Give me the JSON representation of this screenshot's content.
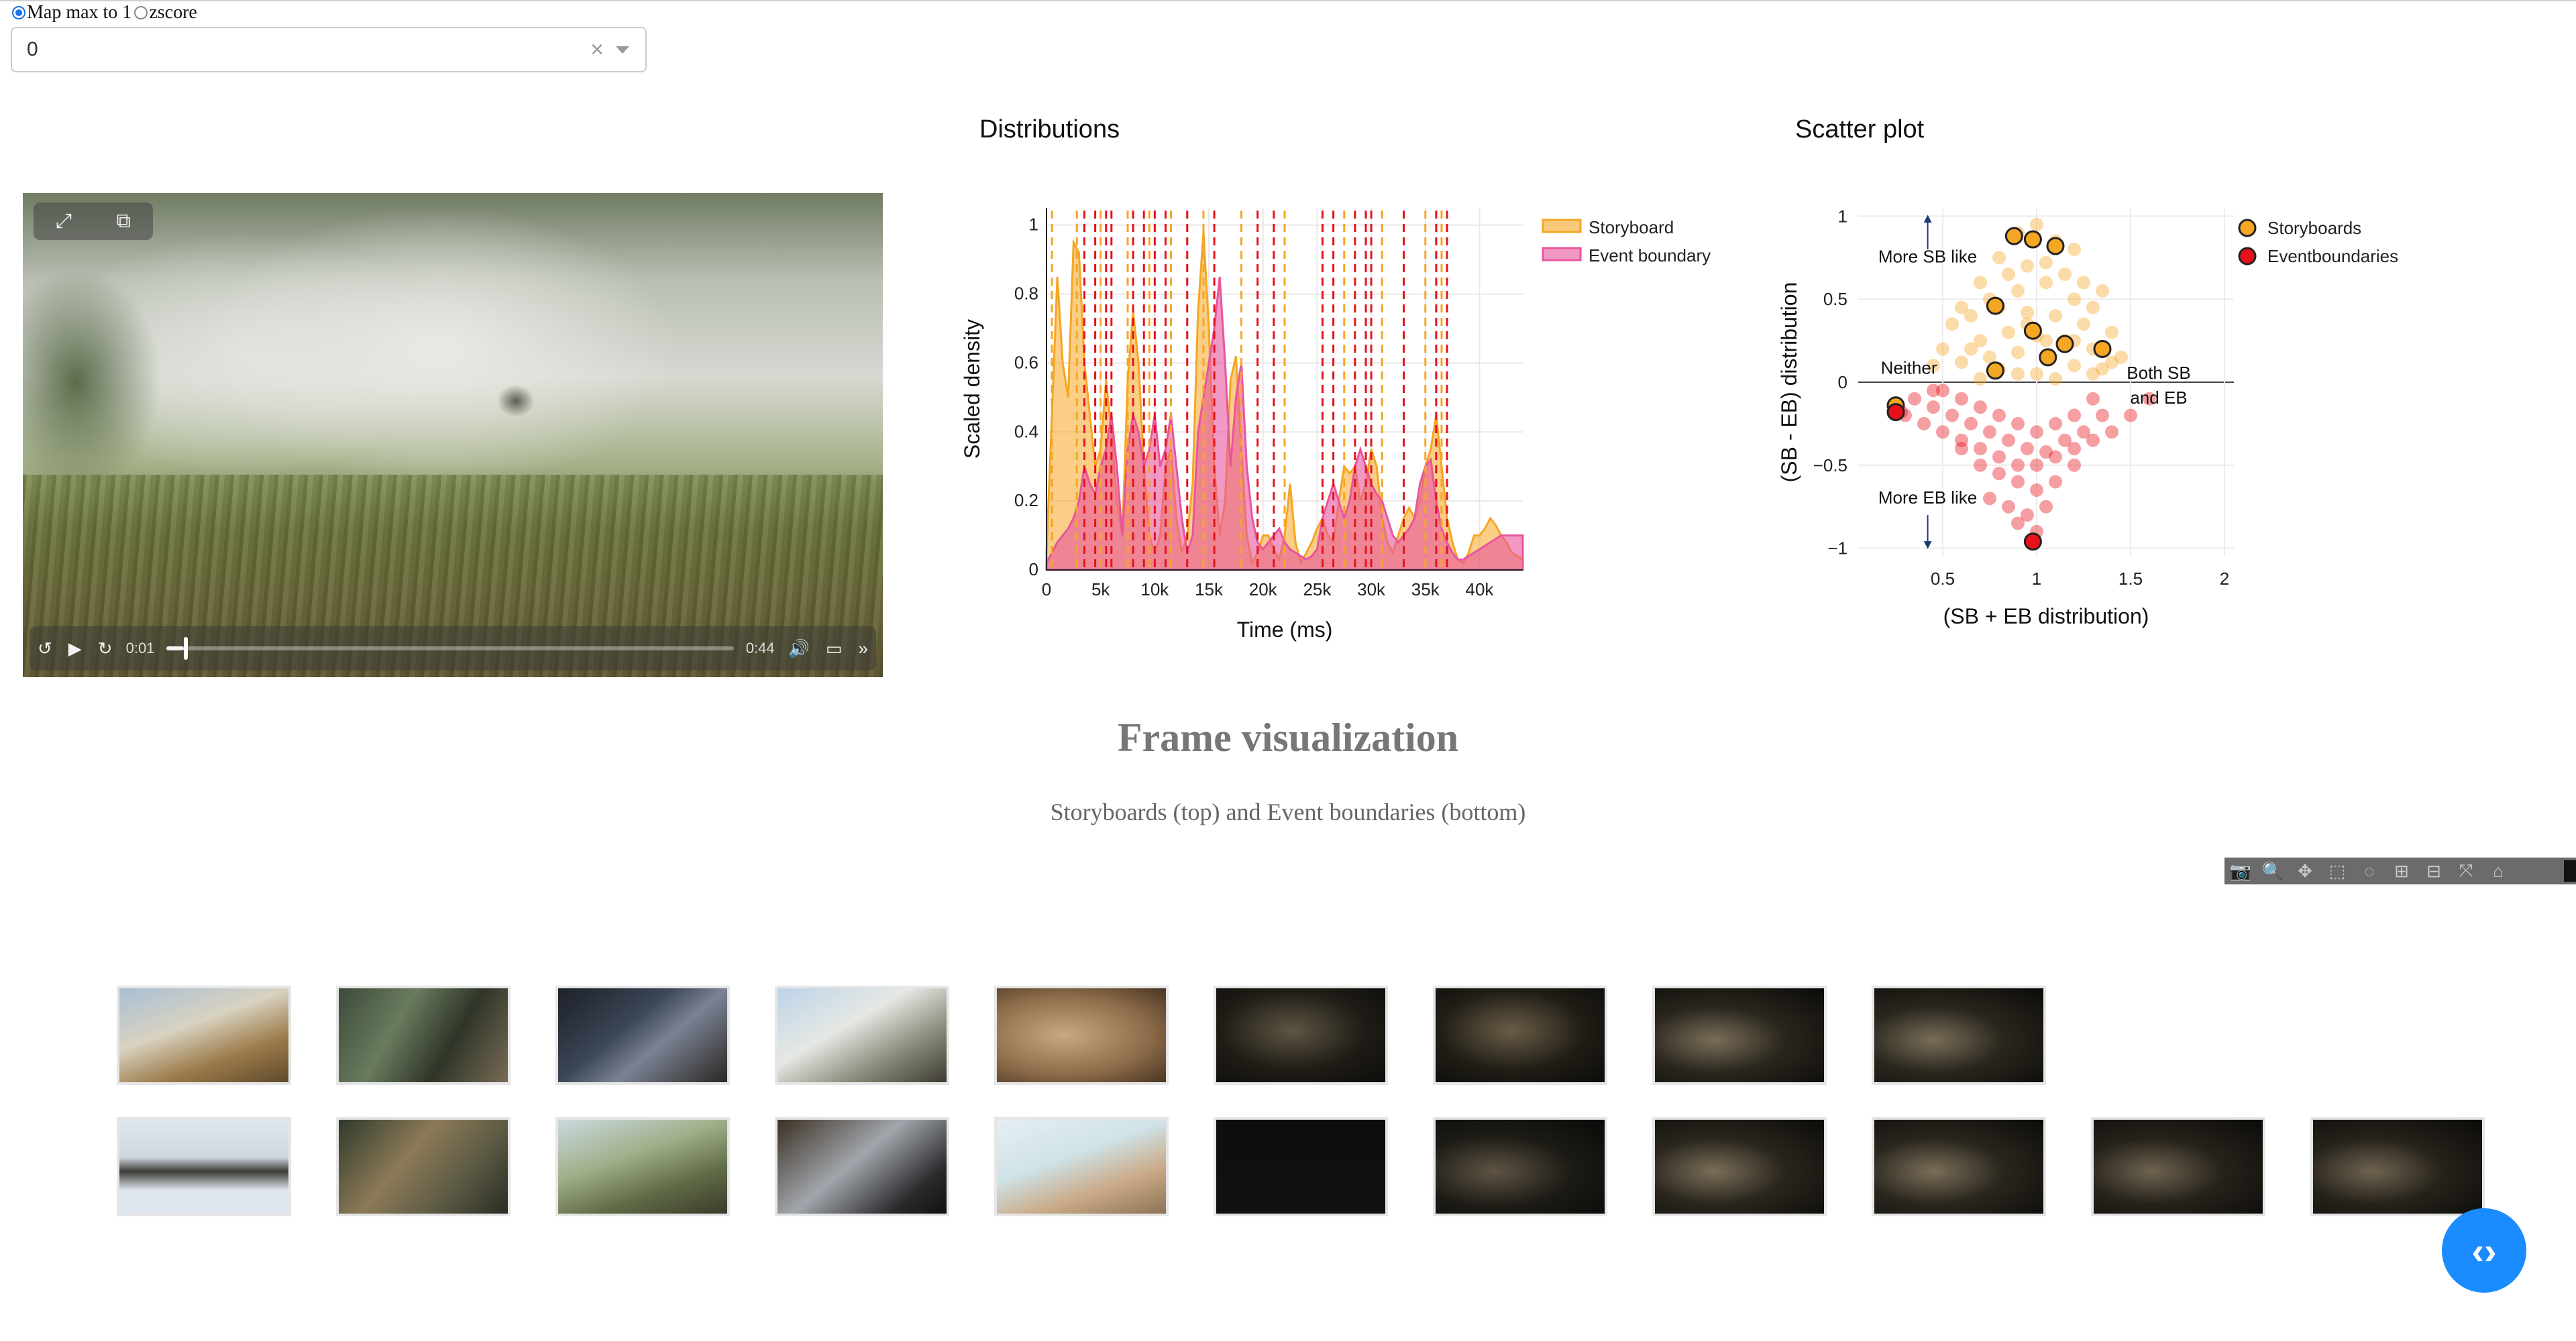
{
  "radio_options": [
    {
      "label": "Map max to 1",
      "selected": true
    },
    {
      "label": "zscore",
      "selected": false
    }
  ],
  "select": {
    "value": "0",
    "clear_icon": "close-icon",
    "caret_icon": "chevron-down-icon"
  },
  "video": {
    "current_time": "0:01",
    "duration": "0:44",
    "progress": 0.03,
    "icons": [
      "fullscreen-icon",
      "picture-in-picture-icon",
      "rewind-15-icon",
      "play-icon",
      "forward-15-icon",
      "volume-icon",
      "airplay-icon",
      "more-icon"
    ]
  },
  "distributions": {
    "title": "Distributions",
    "chart_data": {
      "type": "area",
      "xlabel": "Time (ms)",
      "ylabel": "Scaled density",
      "xlim": [
        0,
        44000
      ],
      "ylim": [
        0,
        1.05
      ],
      "xticks": [
        "0",
        "5k",
        "10k",
        "15k",
        "20k",
        "25k",
        "30k",
        "35k",
        "40k"
      ],
      "xtick_values": [
        0,
        5000,
        10000,
        15000,
        20000,
        25000,
        30000,
        35000,
        40000
      ],
      "yticks": [
        "0",
        "0.2",
        "0.4",
        "0.6",
        "0.8",
        "1"
      ],
      "ytick_values": [
        0,
        0.2,
        0.4,
        0.6,
        0.8,
        1
      ],
      "legend_position": "top-right",
      "series": [
        {
          "name": "Storyboard",
          "color": "#f5a623",
          "x": [
            0,
            500,
            1000,
            1500,
            2000,
            2500,
            3000,
            3500,
            4000,
            4500,
            5000,
            5500,
            6000,
            6500,
            7000,
            7500,
            8000,
            8500,
            9000,
            9500,
            10000,
            10500,
            11000,
            11500,
            12000,
            12500,
            13000,
            13500,
            14000,
            14500,
            15000,
            15500,
            16000,
            16500,
            17000,
            17500,
            18000,
            18500,
            19000,
            19500,
            20000,
            20500,
            21000,
            21500,
            22000,
            22500,
            23000,
            23500,
            24000,
            24500,
            25000,
            25500,
            26000,
            26500,
            27000,
            27500,
            28000,
            28500,
            29000,
            29500,
            30000,
            30500,
            31000,
            31500,
            32000,
            32500,
            33000,
            33500,
            34000,
            34500,
            35000,
            35500,
            36000,
            36500,
            37000,
            37500,
            38000,
            38500,
            39000,
            39500,
            40000,
            40500,
            41000,
            41500,
            42000,
            42500,
            43000,
            43500,
            44000
          ],
          "y": [
            0.05,
            0.45,
            0.85,
            0.6,
            0.5,
            0.95,
            0.92,
            0.6,
            0.45,
            0.3,
            0.35,
            0.55,
            0.4,
            0.2,
            0.1,
            0.55,
            0.75,
            0.6,
            0.3,
            0.1,
            0.05,
            0.1,
            0.3,
            0.35,
            0.15,
            0.05,
            0.1,
            0.25,
            0.75,
            0.98,
            0.7,
            0.3,
            0.1,
            0.2,
            0.55,
            0.62,
            0.35,
            0.1,
            0.02,
            0.05,
            0.1,
            0.1,
            0.06,
            0.03,
            0.1,
            0.25,
            0.08,
            0.02,
            0.05,
            0.08,
            0.12,
            0.15,
            0.1,
            0.08,
            0.2,
            0.3,
            0.28,
            0.3,
            0.2,
            0.25,
            0.35,
            0.3,
            0.15,
            0.08,
            0.05,
            0.1,
            0.15,
            0.18,
            0.15,
            0.2,
            0.3,
            0.35,
            0.45,
            0.3,
            0.15,
            0.08,
            0.03,
            0.02,
            0.05,
            0.1,
            0.1,
            0.12,
            0.15,
            0.13,
            0.1,
            0.08,
            0.05,
            0.04,
            0.03
          ]
        },
        {
          "name": "Event boundary",
          "color": "#e8559e",
          "x": [
            0,
            500,
            1000,
            1500,
            2000,
            2500,
            3000,
            3500,
            4000,
            4500,
            5000,
            5500,
            6000,
            6500,
            7000,
            7500,
            8000,
            8500,
            9000,
            9500,
            10000,
            10500,
            11000,
            11500,
            12000,
            12500,
            13000,
            13500,
            14000,
            14500,
            15000,
            15500,
            16000,
            16500,
            17000,
            17500,
            18000,
            18500,
            19000,
            19500,
            20000,
            20500,
            21000,
            21500,
            22000,
            22500,
            23000,
            23500,
            24000,
            24500,
            25000,
            25500,
            26000,
            26500,
            27000,
            27500,
            28000,
            28500,
            29000,
            29500,
            30000,
            30500,
            31000,
            31500,
            32000,
            32500,
            33000,
            33500,
            34000,
            34500,
            35000,
            35500,
            36000,
            36500,
            37000,
            37500,
            38000,
            38500,
            39000,
            39500,
            40000,
            40500,
            41000,
            41500,
            42000,
            42500,
            43000,
            43500,
            44000
          ],
          "y": [
            0.02,
            0.05,
            0.08,
            0.1,
            0.12,
            0.15,
            0.2,
            0.3,
            0.25,
            0.22,
            0.3,
            0.35,
            0.45,
            0.3,
            0.1,
            0.35,
            0.45,
            0.4,
            0.3,
            0.35,
            0.45,
            0.3,
            0.35,
            0.45,
            0.3,
            0.15,
            0.05,
            0.1,
            0.4,
            0.5,
            0.6,
            0.7,
            0.85,
            0.6,
            0.3,
            0.5,
            0.6,
            0.3,
            0.15,
            0.08,
            0.06,
            0.08,
            0.1,
            0.12,
            0.08,
            0.06,
            0.05,
            0.04,
            0.03,
            0.04,
            0.06,
            0.15,
            0.2,
            0.25,
            0.2,
            0.15,
            0.2,
            0.3,
            0.35,
            0.3,
            0.25,
            0.22,
            0.2,
            0.15,
            0.1,
            0.08,
            0.1,
            0.12,
            0.15,
            0.25,
            0.3,
            0.32,
            0.2,
            0.12,
            0.08,
            0.05,
            0.03,
            0.03,
            0.04,
            0.05,
            0.06,
            0.07,
            0.08,
            0.09,
            0.1,
            0.1,
            0.1,
            0.1,
            0.1
          ]
        }
      ],
      "storyboard_lines": [
        500,
        2800,
        5000,
        7500,
        9500,
        11500,
        14500,
        18000,
        22000,
        27500,
        31000,
        35000,
        36500
      ],
      "event_boundary_lines": [
        3500,
        4500,
        5500,
        6000,
        8000,
        9000,
        10000,
        11000,
        13000,
        15500,
        19500,
        21000,
        25500,
        26500,
        28500,
        29500,
        30000,
        33000,
        36000,
        37000
      ]
    }
  },
  "scatter": {
    "title": "Scatter plot",
    "chart_data": {
      "type": "scatter",
      "xlabel": "(SB + EB distribution)",
      "ylabel": "(SB - EB) distribution",
      "xlim": [
        0.05,
        2.05
      ],
      "ylim": [
        -1.05,
        1.05
      ],
      "xticks": [
        "0.5",
        "1",
        "1.5",
        "2"
      ],
      "xtick_values": [
        0.5,
        1,
        1.5,
        2
      ],
      "yticks": [
        "−1",
        "−0.5",
        "0",
        "0.5",
        "1"
      ],
      "ytick_values": [
        -1,
        -0.5,
        0,
        0.5,
        1
      ],
      "legend_position": "top-right",
      "annotations": [
        "More SB like",
        "Neither",
        "Both SB and EB",
        "More EB like"
      ],
      "series": [
        {
          "name": "Storyboards",
          "color": "#f5a623",
          "x": [
            0.9,
            1.0,
            1.1,
            1.2,
            0.8,
            0.7,
            0.85,
            0.95,
            1.05,
            1.15,
            1.25,
            1.35,
            0.6,
            0.75,
            0.9,
            1.05,
            1.2,
            1.3,
            0.55,
            0.65,
            0.8,
            0.95,
            1.1,
            1.25,
            1.4,
            0.5,
            0.7,
            0.85,
            1.0,
            1.15,
            1.3,
            1.45,
            0.45,
            0.6,
            0.75,
            0.9,
            1.05,
            1.2,
            1.35,
            1.0,
            1.1,
            0.9,
            0.95,
            1.05,
            0.7,
            0.8,
            1.2,
            1.3,
            0.65,
            1.4
          ],
          "y": [
            0.9,
            0.95,
            0.85,
            0.8,
            0.75,
            0.6,
            0.65,
            0.7,
            0.72,
            0.65,
            0.6,
            0.55,
            0.45,
            0.5,
            0.55,
            0.6,
            0.5,
            0.45,
            0.35,
            0.4,
            0.45,
            0.42,
            0.4,
            0.35,
            0.3,
            0.2,
            0.25,
            0.3,
            0.28,
            0.25,
            0.2,
            0.15,
            0.1,
            0.12,
            0.15,
            0.18,
            0.15,
            0.1,
            0.08,
            0.05,
            0.02,
            0.05,
            0.35,
            0.25,
            0.02,
            0.08,
            0.25,
            0.05,
            0.2,
            0.12
          ],
          "outlined": [
            [
              0.88,
              0.88
            ],
            [
              0.98,
              0.86
            ],
            [
              1.1,
              0.82
            ],
            [
              0.78,
              0.46
            ],
            [
              0.98,
              0.31
            ],
            [
              1.15,
              0.23
            ],
            [
              1.35,
              0.2
            ],
            [
              0.78,
              0.07
            ],
            [
              1.06,
              0.15
            ],
            [
              0.25,
              -0.14
            ]
          ]
        },
        {
          "name": "Eventboundaries",
          "color": "#e8101a",
          "x": [
            0.3,
            0.4,
            0.5,
            0.6,
            0.7,
            0.8,
            0.9,
            1.0,
            1.1,
            1.2,
            1.3,
            1.4,
            1.5,
            1.6,
            0.35,
            0.45,
            0.55,
            0.65,
            0.75,
            0.85,
            0.95,
            1.05,
            1.15,
            1.25,
            1.35,
            0.5,
            0.6,
            0.7,
            0.8,
            0.9,
            1.0,
            1.1,
            1.2,
            1.3,
            0.6,
            0.7,
            0.8,
            0.9,
            1.0,
            1.1,
            1.2,
            0.75,
            0.85,
            0.95,
            1.05,
            0.9,
            1.0,
            0.98,
            0.28,
            0.45
          ],
          "y": [
            -0.2,
            -0.25,
            -0.3,
            -0.35,
            -0.4,
            -0.45,
            -0.5,
            -0.5,
            -0.45,
            -0.4,
            -0.35,
            -0.3,
            -0.2,
            -0.1,
            -0.1,
            -0.15,
            -0.2,
            -0.25,
            -0.3,
            -0.35,
            -0.4,
            -0.42,
            -0.35,
            -0.3,
            -0.2,
            -0.05,
            -0.1,
            -0.15,
            -0.2,
            -0.25,
            -0.3,
            -0.25,
            -0.2,
            -0.1,
            -0.4,
            -0.5,
            -0.55,
            -0.6,
            -0.65,
            -0.6,
            -0.5,
            -0.7,
            -0.75,
            -0.8,
            -0.75,
            -0.85,
            -0.9,
            -0.96,
            -0.18,
            -0.05
          ],
          "outlined": [
            [
              0.25,
              -0.18
            ],
            [
              0.98,
              -0.96
            ]
          ]
        }
      ]
    }
  },
  "frame_visualization": {
    "title": "Frame visualization",
    "subtitle": "Storyboards (top) and Event boundaries (bottom)",
    "modebar_icons": [
      "camera-icon",
      "zoom-icon",
      "pan-icon",
      "box-select-icon",
      "lasso-icon",
      "zoom-in-icon",
      "zoom-out-icon",
      "autoscale-icon",
      "home-icon"
    ],
    "storyboard_thumbs": 9,
    "event_boundary_thumbs": 11
  },
  "fab": {
    "icon": "code-icon"
  }
}
